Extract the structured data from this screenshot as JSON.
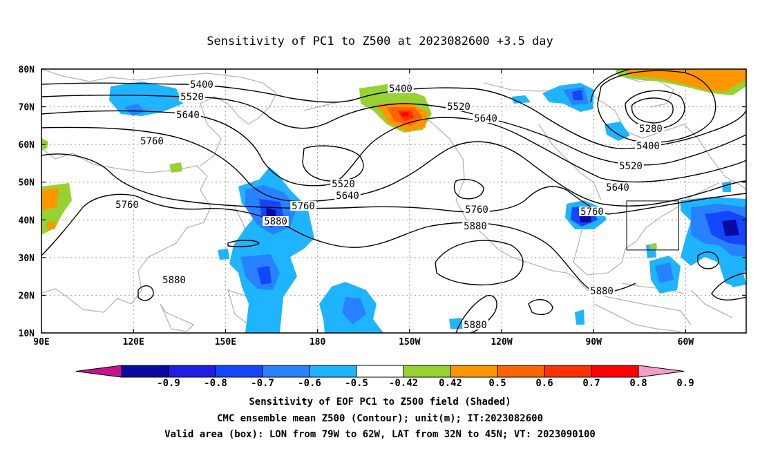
{
  "title": "Sensitivity of PC1 to Z500 at 2023082600 +3.5 day",
  "map": {
    "lat_labels": [
      "80N",
      "70N",
      "60N",
      "50N",
      "40N",
      "30N",
      "20N",
      "10N"
    ],
    "lon_labels": [
      "90E",
      "120E",
      "150E",
      "180",
      "150W",
      "120W",
      "90W",
      "60W"
    ],
    "grid": "dotted",
    "contour_labels": [
      "5400",
      "5520",
      "5640",
      "5760",
      "5400",
      "5520",
      "5640",
      "5760",
      "5880",
      "5520",
      "5640",
      "5760",
      "5880",
      "5760",
      "5880",
      "5280",
      "5400",
      "5520",
      "5640",
      "5760",
      "5880",
      "5880"
    ],
    "valid_box": {
      "lon": [
        "79W",
        "62W"
      ],
      "lat": [
        "32N",
        "45N"
      ]
    }
  },
  "colorbar": {
    "labels": [
      "-0.9",
      "-0.8",
      "-0.7",
      "-0.6",
      "-0.5",
      "-0.42",
      "0.42",
      "0.5",
      "0.6",
      "0.7",
      "0.8",
      "0.9"
    ],
    "colors": [
      "#c8148c",
      "#0a0aa0",
      "#1e1ee6",
      "#1446ff",
      "#2882ff",
      "#1eb4ff",
      "#ffffff",
      "#96d232",
      "#ff9600",
      "#ff6400",
      "#ff3200",
      "#ff0000",
      "#f0a0c8"
    ]
  },
  "caption": {
    "line1": "Sensitivity of EOF PC1 to Z500 field (Shaded)",
    "line2": "CMC ensemble mean Z500 (Contour); unit(m); IT:2023082600",
    "line3": "Valid area (box): LON from 79W to 62W, LAT from 32N to 45N; VT: 2023090100"
  }
}
